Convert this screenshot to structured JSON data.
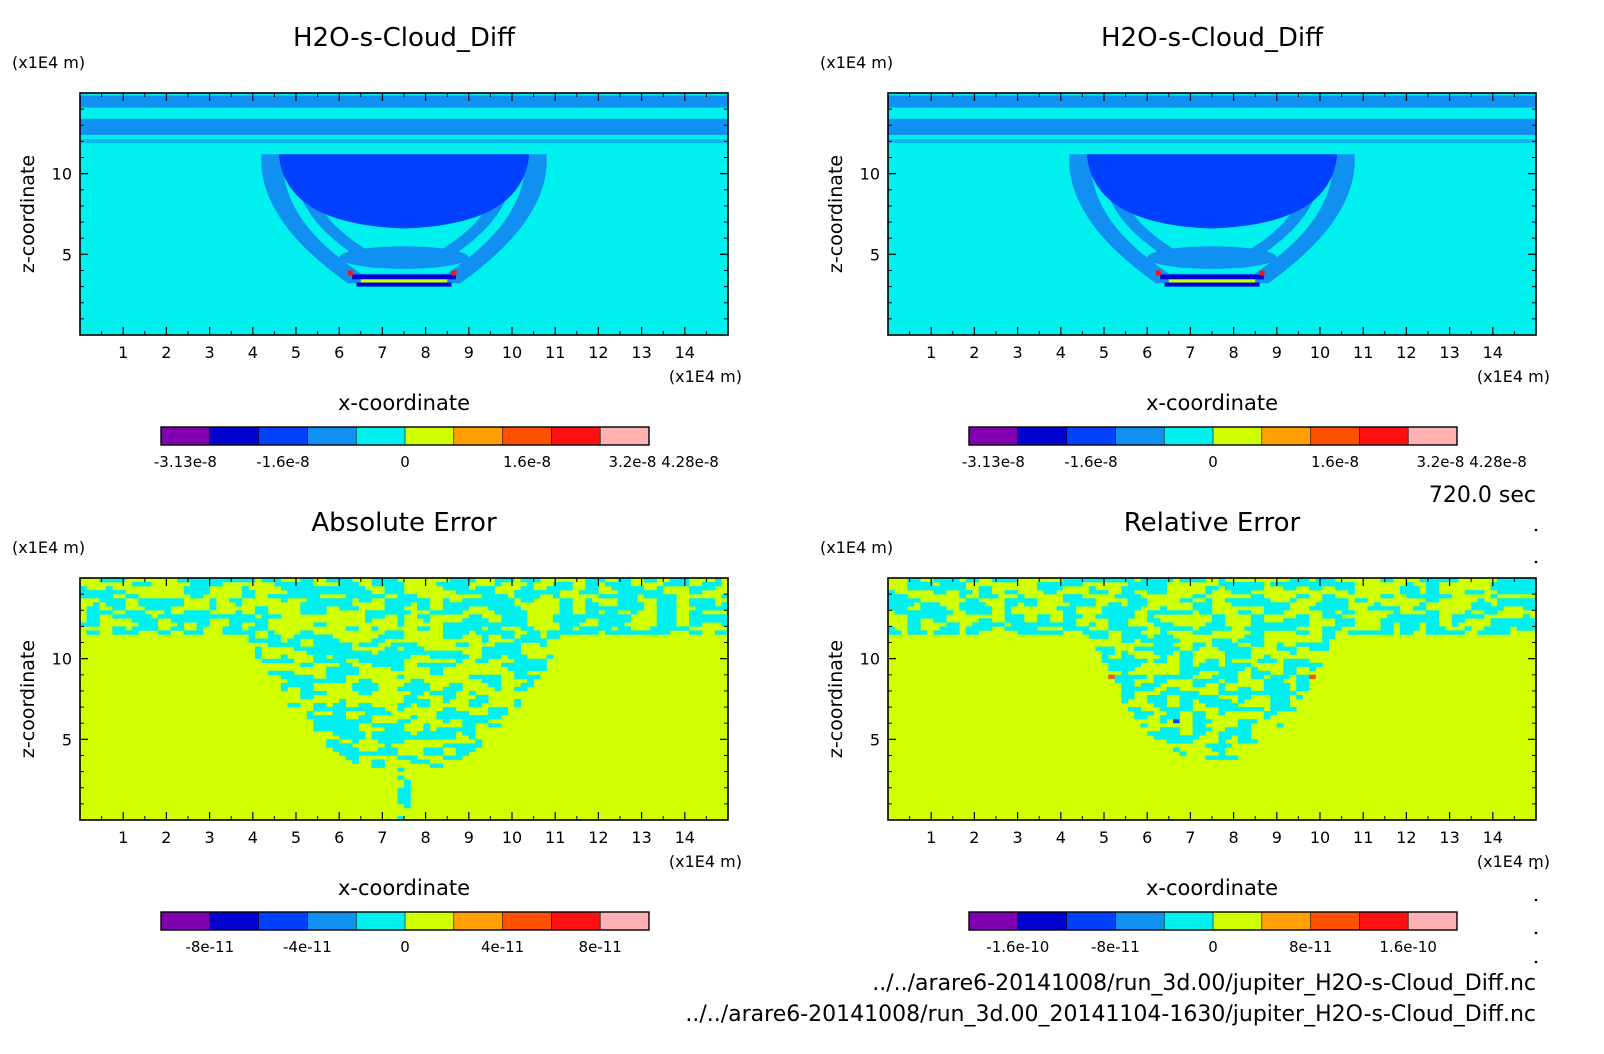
{
  "time_label": "720.0 sec",
  "files": [
    "../../arare6-20141008/run_3d.00/jupiter_H2O-s-Cloud_Diff.nc",
    "../../arare6-20141008/run_3d.00_20141104-1630/jupiter_H2O-s-Cloud_Diff.nc"
  ],
  "chart_data": [
    {
      "type": "heatmap",
      "title": "H2O-s-Cloud_Diff",
      "xlabel": "x-coordinate",
      "ylabel": "z-coordinate",
      "x_unit": "(x1E4 m)",
      "y_unit": "(x1E4 m)",
      "xlim": [
        0,
        15
      ],
      "ylim": [
        0,
        15
      ],
      "x_ticks": [
        "1",
        "2",
        "3",
        "4",
        "5",
        "6",
        "7",
        "8",
        "9",
        "10",
        "11",
        "12",
        "13",
        "14"
      ],
      "y_ticks": [
        "5",
        "10"
      ],
      "pattern": "cloud",
      "colorbar": {
        "colors": [
          "#8000b0",
          "#0000d0",
          "#0040ff",
          "#1090f0",
          "#00f0f0",
          "#d0ff00",
          "#ffa000",
          "#ff5000",
          "#ff1010",
          "#ffb0b0"
        ],
        "labels": [
          "-3.13e-8",
          "-1.6e-8",
          "0",
          "1.6e-8",
          "3.2e-8 4.28e-8"
        ]
      }
    },
    {
      "type": "heatmap",
      "title": "H2O-s-Cloud_Diff",
      "xlabel": "x-coordinate",
      "ylabel": "z-coordinate",
      "x_unit": "(x1E4 m)",
      "y_unit": "(x1E4 m)",
      "xlim": [
        0,
        15
      ],
      "ylim": [
        0,
        15
      ],
      "x_ticks": [
        "1",
        "2",
        "3",
        "4",
        "5",
        "6",
        "7",
        "8",
        "9",
        "10",
        "11",
        "12",
        "13",
        "14"
      ],
      "y_ticks": [
        "5",
        "10"
      ],
      "pattern": "cloud",
      "colorbar": {
        "colors": [
          "#8000b0",
          "#0000d0",
          "#0040ff",
          "#1090f0",
          "#00f0f0",
          "#d0ff00",
          "#ffa000",
          "#ff5000",
          "#ff1010",
          "#ffb0b0"
        ],
        "labels": [
          "-3.13e-8",
          "-1.6e-8",
          "0",
          "1.6e-8",
          "3.2e-8 4.28e-8"
        ]
      }
    },
    {
      "type": "heatmap",
      "title": "Absolute Error",
      "xlabel": "x-coordinate",
      "ylabel": "z-coordinate",
      "x_unit": "(x1E4 m)",
      "y_unit": "(x1E4 m)",
      "xlim": [
        0,
        15
      ],
      "ylim": [
        0,
        15
      ],
      "x_ticks": [
        "1",
        "2",
        "3",
        "4",
        "5",
        "6",
        "7",
        "8",
        "9",
        "10",
        "11",
        "12",
        "13",
        "14"
      ],
      "y_ticks": [
        "5",
        "10"
      ],
      "pattern": "noise-wide",
      "colorbar": {
        "colors": [
          "#8000b0",
          "#0000d0",
          "#0040ff",
          "#1090f0",
          "#00f0f0",
          "#d0ff00",
          "#ffa000",
          "#ff5000",
          "#ff1010",
          "#ffb0b0"
        ],
        "labels": [
          "-8e-11",
          "-4e-11",
          "0",
          "4e-11",
          "8e-11"
        ]
      }
    },
    {
      "type": "heatmap",
      "title": "Relative Error",
      "xlabel": "x-coordinate",
      "ylabel": "z-coordinate",
      "x_unit": "(x1E4 m)",
      "y_unit": "(x1E4 m)",
      "xlim": [
        0,
        15
      ],
      "ylim": [
        0,
        15
      ],
      "x_ticks": [
        "1",
        "2",
        "3",
        "4",
        "5",
        "6",
        "7",
        "8",
        "9",
        "10",
        "11",
        "12",
        "13",
        "14"
      ],
      "y_ticks": [
        "5",
        "10"
      ],
      "pattern": "noise-narrow",
      "colorbar": {
        "colors": [
          "#8000b0",
          "#0000d0",
          "#0040ff",
          "#1090f0",
          "#00f0f0",
          "#d0ff00",
          "#ffa000",
          "#ff5000",
          "#ff1010",
          "#ffb0b0"
        ],
        "labels": [
          "-1.6e-10",
          "-8e-11",
          "0",
          "8e-11",
          "1.6e-10"
        ]
      }
    }
  ]
}
